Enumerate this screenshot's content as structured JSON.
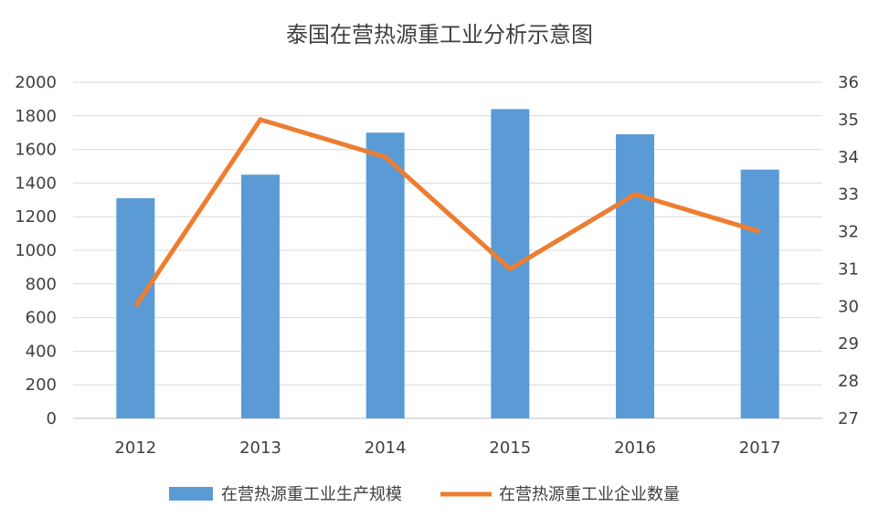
{
  "chart_data": {
    "type": "bar",
    "title": "泰国在营热源重工业分析示意图",
    "categories": [
      "2012",
      "2013",
      "2014",
      "2015",
      "2016",
      "2017"
    ],
    "series": [
      {
        "name": "在营热源重工业生产规模",
        "type": "bar",
        "axis": "left",
        "color": "#5b9bd5",
        "values": [
          1310,
          1450,
          1700,
          1840,
          1690,
          1480
        ]
      },
      {
        "name": "在营热源重工业企业数量",
        "type": "line",
        "axis": "right",
        "color": "#ed7d31",
        "values": [
          30,
          35,
          34,
          31,
          33,
          32
        ]
      }
    ],
    "y_left": {
      "min": 0,
      "max": 2000,
      "step": 200
    },
    "y_right": {
      "min": 27,
      "max": 36,
      "step": 1
    },
    "grid": true,
    "legend_position": "bottom"
  }
}
